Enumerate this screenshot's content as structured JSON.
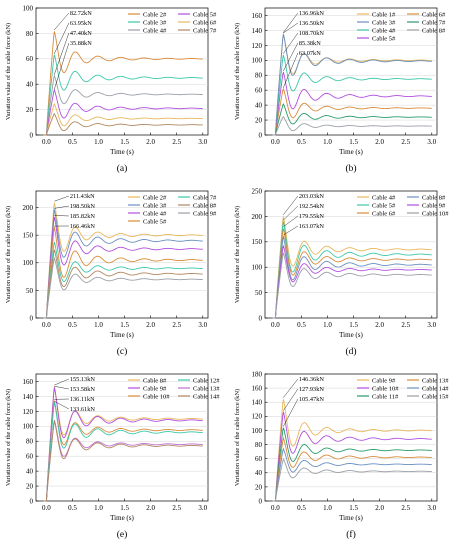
{
  "chart_data": [
    {
      "type": "line",
      "panel_label": "(a)",
      "xlabel": "Time (s)",
      "ylabel": "Variation value of the cable force (kN)",
      "xlim": [
        -0.2,
        3.1
      ],
      "ylim": [
        0,
        100
      ],
      "xticks": [
        "0.0",
        "0.5",
        "1.0",
        "1.5",
        "2.0",
        "2.5",
        "3.0"
      ],
      "yticks": [
        "0",
        "20",
        "40",
        "60",
        "80",
        "100"
      ],
      "grid": true,
      "legend_position": "top-right",
      "legend_columns": 2,
      "annotations": [
        "82.72kN",
        "63.95kN",
        "47.40kN",
        "35.88kN"
      ],
      "series": [
        {
          "name": "Cable 2#",
          "color": "#d98b3a",
          "peak": 82.72,
          "steady": 60
        },
        {
          "name": "Cable 3#",
          "color": "#3cc8a8",
          "peak": 63.95,
          "steady": 45
        },
        {
          "name": "Cable 4#",
          "color": "#9aa0a6",
          "peak": 47.4,
          "steady": 32
        },
        {
          "name": "Cable 5#",
          "color": "#b24fe0",
          "peak": 35.88,
          "steady": 21
        },
        {
          "name": "Cable 6#",
          "color": "#e8b85a",
          "peak": 25,
          "steady": 13
        },
        {
          "name": "Cable 7#",
          "color": "#b08860",
          "peak": 17,
          "steady": 8
        }
      ]
    },
    {
      "type": "line",
      "panel_label": "(b)",
      "xlabel": "Time (s)",
      "ylabel": "Variation value of the cable force (kN)",
      "xlim": [
        -0.2,
        3.1
      ],
      "ylim": [
        0,
        170
      ],
      "xticks": [
        "0.0",
        "0.5",
        "1.0",
        "1.5",
        "2.0",
        "2.5",
        "3.0"
      ],
      "yticks": [
        "0",
        "20",
        "40",
        "60",
        "80",
        "100",
        "120",
        "140",
        "160"
      ],
      "grid": true,
      "legend_position": "top-right",
      "legend_columns": 2,
      "annotations": [
        "136.96kN",
        "136.50kN",
        "108.70kN",
        "85.38kN",
        "63.07kN"
      ],
      "series": [
        {
          "name": "Cable 1#",
          "color": "#e8b85a",
          "peak": 136.96,
          "steady": 100
        },
        {
          "name": "Cable 3#",
          "color": "#6a8fc0",
          "peak": 136.5,
          "steady": 99
        },
        {
          "name": "Cable 4#",
          "color": "#3cc8a8",
          "peak": 108.7,
          "steady": 75
        },
        {
          "name": "Cable 5#",
          "color": "#b24fe0",
          "peak": 85.38,
          "steady": 52
        },
        {
          "name": "Cable 6#",
          "color": "#d98b3a",
          "peak": 63.07,
          "steady": 36
        },
        {
          "name": "Cable 7#",
          "color": "#2a9a6a",
          "peak": 42,
          "steady": 24
        },
        {
          "name": "Cable 8#",
          "color": "#9aa0a6",
          "peak": 25,
          "steady": 12
        }
      ]
    },
    {
      "type": "line",
      "panel_label": "(c)",
      "xlabel": "Time (s)",
      "ylabel": "Variation value of the cable force (kN)",
      "xlim": [
        -0.2,
        3.1
      ],
      "ylim": [
        0,
        230
      ],
      "xticks": [
        "0.0",
        "0.5",
        "1.0",
        "1.5",
        "2.0",
        "2.5",
        "3.0"
      ],
      "yticks": [
        "0",
        "50",
        "100",
        "150",
        "200"
      ],
      "grid": true,
      "legend_position": "top-right",
      "legend_columns": 2,
      "annotations": [
        "211.43kN",
        "198.50kN",
        "185.82kN",
        "166.46kN"
      ],
      "series": [
        {
          "name": "Cable 2#",
          "color": "#e8b85a",
          "peak": 211.43,
          "steady": 150
        },
        {
          "name": "Cable 3#",
          "color": "#6a8fc0",
          "peak": 198.5,
          "steady": 140
        },
        {
          "name": "Cable 4#",
          "color": "#b24fe0",
          "peak": 185.82,
          "steady": 125
        },
        {
          "name": "Cable 5#",
          "color": "#d98b3a",
          "peak": 166.46,
          "steady": 105
        },
        {
          "name": "Cable 7#",
          "color": "#3cc8a8",
          "peak": 140,
          "steady": 90
        },
        {
          "name": "Cable 8#",
          "color": "#b08860",
          "peak": 125,
          "steady": 80
        },
        {
          "name": "Cable 9#",
          "color": "#9aa0a6",
          "peak": 110,
          "steady": 70
        }
      ]
    },
    {
      "type": "line",
      "panel_label": "(d)",
      "xlabel": "Time (s)",
      "ylabel": "Variation value of the cable force (kN)",
      "xlim": [
        -0.2,
        3.1
      ],
      "ylim": [
        0,
        250
      ],
      "xticks": [
        "0.0",
        "0.5",
        "1.0",
        "1.5",
        "2.0",
        "2.5",
        "3.0"
      ],
      "yticks": [
        "0",
        "50",
        "100",
        "150",
        "200",
        "250"
      ],
      "grid": true,
      "legend_position": "top-right",
      "legend_columns": 2,
      "annotations": [
        "203.03kN",
        "192.54kN",
        "179.55kN",
        "163.07kN"
      ],
      "series": [
        {
          "name": "Cable 4#",
          "color": "#e8b85a",
          "peak": 203.03,
          "steady": 135
        },
        {
          "name": "Cable 5#",
          "color": "#3cc8a8",
          "peak": 192.54,
          "steady": 125
        },
        {
          "name": "Cable 6#",
          "color": "#d98b3a",
          "peak": 179.55,
          "steady": 115
        },
        {
          "name": "Cable 8#",
          "color": "#6a8fc0",
          "peak": 163.07,
          "steady": 105
        },
        {
          "name": "Cable 9#",
          "color": "#b24fe0",
          "peak": 145,
          "steady": 95
        },
        {
          "name": "Cable 10#",
          "color": "#9aa0a6",
          "peak": 130,
          "steady": 85
        }
      ]
    },
    {
      "type": "line",
      "panel_label": "(e)",
      "xlabel": "Time (s)",
      "ylabel": "Variation value of the cable force (kN)",
      "xlim": [
        -0.2,
        3.1
      ],
      "ylim": [
        0,
        170
      ],
      "xticks": [
        "0.0",
        "0.5",
        "1.0",
        "1.5",
        "2.0",
        "2.5",
        "3.0"
      ],
      "yticks": [
        "0",
        "20",
        "40",
        "60",
        "80",
        "100",
        "120",
        "140",
        "160"
      ],
      "grid": true,
      "legend_position": "top-right",
      "legend_columns": 2,
      "annotations": [
        "155.13kN",
        "153.58kN",
        "136.11kN",
        "133.61kN"
      ],
      "series": [
        {
          "name": "Cable 8#",
          "color": "#e8b85a",
          "peak": 155.13,
          "steady": 110
        },
        {
          "name": "Cable 9#",
          "color": "#b24fe0",
          "peak": 153.58,
          "steady": 108
        },
        {
          "name": "Cable 10#",
          "color": "#d98b3a",
          "peak": 136.11,
          "steady": 95
        },
        {
          "name": "Cable 12#",
          "color": "#3cc8a8",
          "peak": 133.61,
          "steady": 92
        },
        {
          "name": "Cable 13#",
          "color": "#c070d0",
          "peak": 110,
          "steady": 76
        },
        {
          "name": "Cable 14#",
          "color": "#b08860",
          "peak": 108,
          "steady": 74
        }
      ]
    },
    {
      "type": "line",
      "panel_label": "(f)",
      "xlabel": "Time (s)",
      "ylabel": "Variation value of the cable force (kN)",
      "xlim": [
        -0.2,
        3.1
      ],
      "ylim": [
        0,
        180
      ],
      "xticks": [
        "0.0",
        "0.5",
        "1.0",
        "1.5",
        "2.0",
        "2.5",
        "3.0"
      ],
      "yticks": [
        "0",
        "20",
        "40",
        "60",
        "80",
        "100",
        "120",
        "140",
        "160",
        "180"
      ],
      "grid": true,
      "legend_position": "top-right",
      "legend_columns": 2,
      "annotations": [
        "146.36kN",
        "127.93kN",
        "105.47kN"
      ],
      "series": [
        {
          "name": "Cable 9#",
          "color": "#e8b85a",
          "peak": 146.36,
          "steady": 100
        },
        {
          "name": "Cable 10#",
          "color": "#b24fe0",
          "peak": 127.93,
          "steady": 88
        },
        {
          "name": "Cable 11#",
          "color": "#2a9a6a",
          "peak": 105.47,
          "steady": 72
        },
        {
          "name": "Cable 13#",
          "color": "#d98b3a",
          "peak": 90,
          "steady": 62
        },
        {
          "name": "Cable 14#",
          "color": "#6a8fc0",
          "peak": 75,
          "steady": 52
        },
        {
          "name": "Cable 15#",
          "color": "#9aa0a6",
          "peak": 60,
          "steady": 42
        }
      ]
    }
  ]
}
